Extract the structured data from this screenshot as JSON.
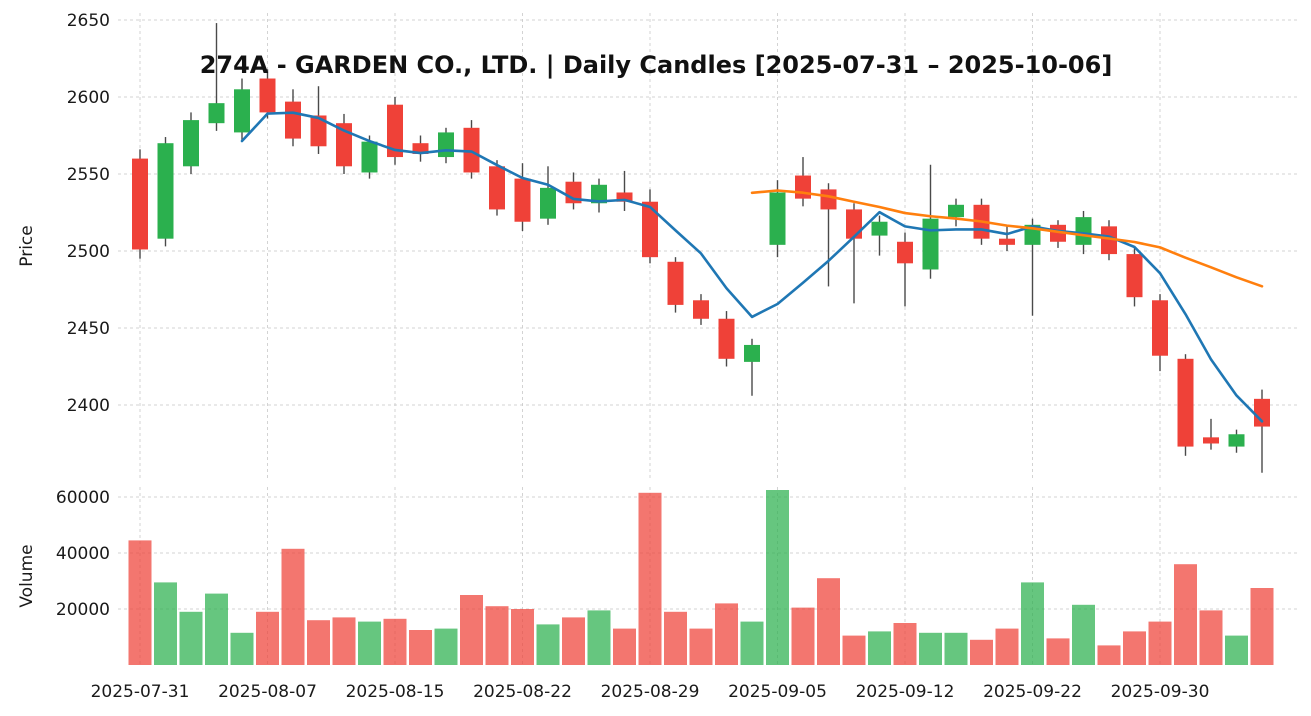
{
  "title": "274A - GARDEN CO., LTD. | Daily Candles [2025-07-31 – 2025-10-06]",
  "chart_data": {
    "type": "candlestick",
    "title": "274A - GARDEN CO., LTD. | Daily Candles [2025-07-31 – 2025-10-06]",
    "ylabel": "Price",
    "ylabel_volume": "Volume",
    "grid": true,
    "legend": "none",
    "price_axis_range": [
      2356,
      2654
    ],
    "volume_axis_range": [
      0,
      63500
    ],
    "colors": {
      "up": "#2bb04e",
      "down": "#ef4138",
      "wick": "#4a4a4a",
      "ma_short": "#1f77b4",
      "ma_long": "#ff7f0e",
      "volume_opacity": 0.72
    },
    "overlays": {
      "ma_short": {
        "name": "MA5",
        "window": 5,
        "color": "#1f77b4"
      },
      "ma_long": {
        "name": "MA25",
        "window": 25,
        "color": "#ff7f0e"
      }
    },
    "axes": {
      "price_ticks": [
        2650,
        2600,
        2550,
        2500,
        2450,
        2400
      ],
      "volume_ticks": [
        60000,
        40000,
        20000
      ],
      "x_ticks": [
        {
          "index": 0,
          "label": "2025-07-31"
        },
        {
          "index": 5,
          "label": "2025-08-07"
        },
        {
          "index": 10,
          "label": "2025-08-15"
        },
        {
          "index": 15,
          "label": "2025-08-22"
        },
        {
          "index": 20,
          "label": "2025-08-29"
        },
        {
          "index": 25,
          "label": "2025-09-05"
        },
        {
          "index": 30,
          "label": "2025-09-12"
        },
        {
          "index": 35,
          "label": "2025-09-22"
        },
        {
          "index": 40,
          "label": "2025-09-30"
        }
      ]
    },
    "candles": [
      {
        "date": "2025-07-31",
        "open": 2560,
        "high": 2566,
        "low": 2495,
        "close": 2501,
        "volume": 44500
      },
      {
        "date": "2025-08-01",
        "open": 2508,
        "high": 2574,
        "low": 2503,
        "close": 2570,
        "volume": 29500
      },
      {
        "date": "2025-08-04",
        "open": 2555,
        "high": 2590,
        "low": 2550,
        "close": 2585,
        "volume": 19000
      },
      {
        "date": "2025-08-05",
        "open": 2583,
        "high": 2648,
        "low": 2578,
        "close": 2596,
        "volume": 25500
      },
      {
        "date": "2025-08-06",
        "open": 2577,
        "high": 2612,
        "low": 2572,
        "close": 2605,
        "volume": 11500
      },
      {
        "date": "2025-08-07",
        "open": 2612,
        "high": 2618,
        "low": 2586,
        "close": 2590,
        "volume": 19000
      },
      {
        "date": "2025-08-08",
        "open": 2597,
        "high": 2605,
        "low": 2568,
        "close": 2573,
        "volume": 41500
      },
      {
        "date": "2025-08-12",
        "open": 2588,
        "high": 2607,
        "low": 2563,
        "close": 2568,
        "volume": 16000
      },
      {
        "date": "2025-08-13",
        "open": 2583,
        "high": 2589,
        "low": 2550,
        "close": 2555,
        "volume": 17000
      },
      {
        "date": "2025-08-14",
        "open": 2551,
        "high": 2575,
        "low": 2547,
        "close": 2571,
        "volume": 15500
      },
      {
        "date": "2025-08-15",
        "open": 2595,
        "high": 2600,
        "low": 2556,
        "close": 2561,
        "volume": 16500
      },
      {
        "date": "2025-08-18",
        "open": 2570,
        "high": 2575,
        "low": 2558,
        "close": 2563,
        "volume": 12500
      },
      {
        "date": "2025-08-19",
        "open": 2561,
        "high": 2580,
        "low": 2557,
        "close": 2577,
        "volume": 13000
      },
      {
        "date": "2025-08-20",
        "open": 2580,
        "high": 2585,
        "low": 2547,
        "close": 2551,
        "volume": 25000
      },
      {
        "date": "2025-08-21",
        "open": 2555,
        "high": 2559,
        "low": 2523,
        "close": 2527,
        "volume": 21000
      },
      {
        "date": "2025-08-22",
        "open": 2547,
        "high": 2557,
        "low": 2513,
        "close": 2519,
        "volume": 20000
      },
      {
        "date": "2025-08-25",
        "open": 2521,
        "high": 2555,
        "low": 2517,
        "close": 2541,
        "volume": 14500
      },
      {
        "date": "2025-08-26",
        "open": 2545,
        "high": 2551,
        "low": 2527,
        "close": 2531,
        "volume": 17000
      },
      {
        "date": "2025-08-27",
        "open": 2531,
        "high": 2547,
        "low": 2525,
        "close": 2543,
        "volume": 19500
      },
      {
        "date": "2025-08-28",
        "open": 2538,
        "high": 2552,
        "low": 2526,
        "close": 2532,
        "volume": 13000
      },
      {
        "date": "2025-08-29",
        "open": 2532,
        "high": 2540,
        "low": 2492,
        "close": 2496,
        "volume": 61500
      },
      {
        "date": "2025-09-01",
        "open": 2493,
        "high": 2496,
        "low": 2460,
        "close": 2465,
        "volume": 19000
      },
      {
        "date": "2025-09-02",
        "open": 2468,
        "high": 2472,
        "low": 2452,
        "close": 2456,
        "volume": 13000
      },
      {
        "date": "2025-09-03",
        "open": 2456,
        "high": 2461,
        "low": 2425,
        "close": 2430,
        "volume": 22000
      },
      {
        "date": "2025-09-04",
        "open": 2428,
        "high": 2443,
        "low": 2406,
        "close": 2439,
        "volume": 15500
      },
      {
        "date": "2025-09-05",
        "open": 2504,
        "high": 2546,
        "low": 2496,
        "close": 2538,
        "volume": 62500
      },
      {
        "date": "2025-09-08",
        "open": 2549,
        "high": 2561,
        "low": 2529,
        "close": 2534,
        "volume": 20500
      },
      {
        "date": "2025-09-09",
        "open": 2540,
        "high": 2544,
        "low": 2477,
        "close": 2527,
        "volume": 31000
      },
      {
        "date": "2025-09-10",
        "open": 2527,
        "high": 2531,
        "low": 2466,
        "close": 2508,
        "volume": 10500
      },
      {
        "date": "2025-09-11",
        "open": 2510,
        "high": 2523,
        "low": 2497,
        "close": 2519,
        "volume": 12000
      },
      {
        "date": "2025-09-12",
        "open": 2506,
        "high": 2512,
        "low": 2464,
        "close": 2492,
        "volume": 15000
      },
      {
        "date": "2025-09-16",
        "open": 2488,
        "high": 2556,
        "low": 2482,
        "close": 2521,
        "volume": 11500
      },
      {
        "date": "2025-09-17",
        "open": 2522,
        "high": 2534,
        "low": 2516,
        "close": 2530,
        "volume": 11500
      },
      {
        "date": "2025-09-18",
        "open": 2530,
        "high": 2534,
        "low": 2504,
        "close": 2508,
        "volume": 9000
      },
      {
        "date": "2025-09-19",
        "open": 2508,
        "high": 2516,
        "low": 2500,
        "close": 2504,
        "volume": 13000
      },
      {
        "date": "2025-09-22",
        "open": 2504,
        "high": 2521,
        "low": 2458,
        "close": 2517,
        "volume": 29500
      },
      {
        "date": "2025-09-24",
        "open": 2517,
        "high": 2520,
        "low": 2502,
        "close": 2506,
        "volume": 9500
      },
      {
        "date": "2025-09-25",
        "open": 2504,
        "high": 2526,
        "low": 2498,
        "close": 2522,
        "volume": 21500
      },
      {
        "date": "2025-09-26",
        "open": 2516,
        "high": 2520,
        "low": 2494,
        "close": 2498,
        "volume": 7000
      },
      {
        "date": "2025-09-29",
        "open": 2498,
        "high": 2503,
        "low": 2464,
        "close": 2470,
        "volume": 12000
      },
      {
        "date": "2025-09-30",
        "open": 2468,
        "high": 2472,
        "low": 2422,
        "close": 2432,
        "volume": 15500
      },
      {
        "date": "2025-10-01",
        "open": 2430,
        "high": 2433,
        "low": 2367,
        "close": 2373,
        "volume": 36000
      },
      {
        "date": "2025-10-02",
        "open": 2379,
        "high": 2391,
        "low": 2371,
        "close": 2375,
        "volume": 19500
      },
      {
        "date": "2025-10-03",
        "open": 2373,
        "high": 2384,
        "low": 2369,
        "close": 2381,
        "volume": 10500
      },
      {
        "date": "2025-10-06",
        "open": 2404,
        "high": 2410,
        "low": 2356,
        "close": 2386,
        "volume": 27500
      }
    ]
  }
}
